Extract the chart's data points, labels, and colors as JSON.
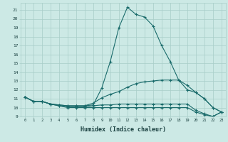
{
  "bg_color": "#cce9e5",
  "grid_color": "#a8cdc8",
  "line_color": "#1a6b6b",
  "marker_color": "#1a6b6b",
  "xlabel": "Humidex (Indice chaleur)",
  "xlim": [
    -0.5,
    23.5
  ],
  "ylim": [
    9,
    21.8
  ],
  "xticks": [
    0,
    1,
    2,
    3,
    4,
    5,
    6,
    7,
    8,
    9,
    10,
    11,
    12,
    13,
    14,
    15,
    16,
    17,
    18,
    19,
    20,
    21,
    22,
    23
  ],
  "yticks": [
    9,
    10,
    11,
    12,
    13,
    14,
    15,
    16,
    17,
    18,
    19,
    20,
    21
  ],
  "series": [
    {
      "x": [
        0,
        1,
        2,
        3,
        4,
        5,
        6,
        7,
        8,
        9,
        10,
        11,
        12,
        13,
        14,
        15,
        16,
        17,
        18,
        19,
        20,
        21,
        22,
        23
      ],
      "y": [
        11.2,
        10.7,
        10.7,
        10.4,
        10.3,
        10.2,
        10.2,
        10.2,
        10.3,
        12.2,
        15.2,
        19.0,
        21.3,
        20.5,
        20.2,
        19.2,
        17.0,
        15.2,
        13.1,
        12.5,
        11.7,
        11.0,
        10.0,
        9.5
      ]
    },
    {
      "x": [
        0,
        1,
        2,
        3,
        4,
        5,
        6,
        7,
        8,
        9,
        10,
        11,
        12,
        13,
        14,
        15,
        16,
        17,
        18,
        19,
        20,
        21,
        22,
        23
      ],
      "y": [
        11.2,
        10.7,
        10.7,
        10.4,
        10.3,
        10.2,
        10.2,
        10.2,
        10.5,
        11.1,
        11.5,
        11.8,
        12.3,
        12.7,
        12.9,
        13.0,
        13.1,
        13.1,
        13.1,
        12.0,
        11.7,
        11.0,
        10.0,
        9.5
      ]
    },
    {
      "x": [
        0,
        1,
        2,
        3,
        4,
        5,
        6,
        7,
        8,
        9,
        10,
        11,
        12,
        13,
        14,
        15,
        16,
        17,
        18,
        19,
        20,
        21,
        22,
        23
      ],
      "y": [
        11.2,
        10.7,
        10.7,
        10.4,
        10.2,
        10.1,
        10.1,
        10.1,
        10.2,
        10.3,
        10.3,
        10.4,
        10.4,
        10.4,
        10.4,
        10.4,
        10.4,
        10.4,
        10.4,
        10.4,
        9.7,
        9.3,
        9.0,
        9.5
      ]
    },
    {
      "x": [
        0,
        1,
        2,
        3,
        4,
        5,
        6,
        7,
        8,
        9,
        10,
        11,
        12,
        13,
        14,
        15,
        16,
        17,
        18,
        19,
        20,
        21,
        22,
        23
      ],
      "y": [
        11.2,
        10.7,
        10.7,
        10.4,
        10.2,
        10.0,
        10.0,
        10.0,
        10.0,
        10.0,
        10.0,
        10.0,
        10.0,
        10.0,
        10.0,
        10.0,
        10.0,
        10.0,
        10.0,
        10.0,
        9.5,
        9.2,
        9.0,
        9.5
      ]
    }
  ]
}
